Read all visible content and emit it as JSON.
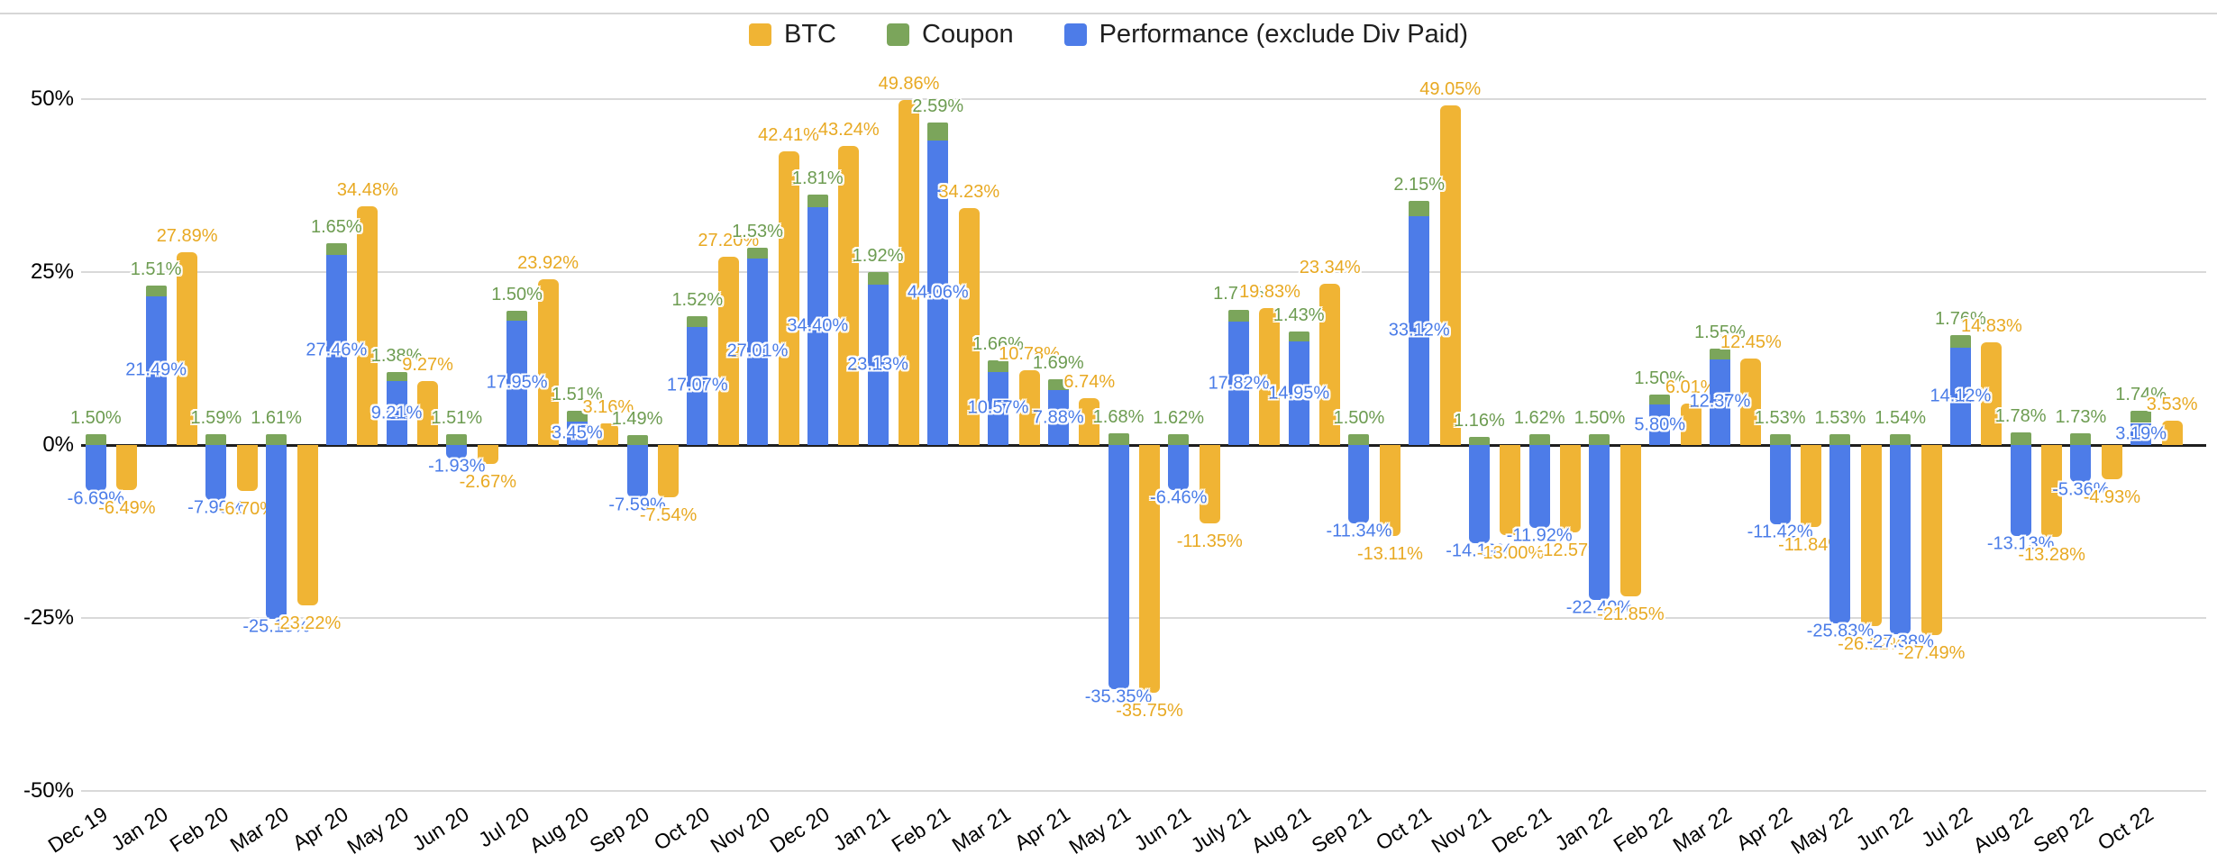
{
  "legend": [
    {
      "label": "BTC",
      "color": "#f0b434"
    },
    {
      "label": "Coupon",
      "color": "#7ba55b"
    },
    {
      "label": "Performance (exclude Div Paid)",
      "color": "#4d7ce8"
    }
  ],
  "y_axis": {
    "ticks": [
      "50%",
      "25%",
      "0%",
      "-25%",
      "-50%"
    ],
    "tick_values": [
      50,
      25,
      0,
      -25,
      -50
    ]
  },
  "chart_data": {
    "type": "bar",
    "title": "",
    "xlabel": "",
    "ylabel": "",
    "ylim": [
      -50,
      50
    ],
    "grid": true,
    "legend_position": "top",
    "stacking": "Coupon is stacked on top of Performance in one column; BTC is a separate column per category",
    "label_format": "2 decimals with % suffix",
    "categories": [
      "Dec 19",
      "Jan 20",
      "Feb 20",
      "Mar 20",
      "Apr 20",
      "May 20",
      "Jun 20",
      "Jul 20",
      "Aug 20",
      "Sep 20",
      "Oct 20",
      "Nov 20",
      "Dec 20",
      "Jan 21",
      "Feb 21",
      "Mar 21",
      "Apr 21",
      "May 21",
      "Jun 21",
      "July 21",
      "Aug 21",
      "Sep 21",
      "Oct 21",
      "Nov 21",
      "Dec 21",
      "Jan 22",
      "Feb 22",
      "Mar 22",
      "Apr 22",
      "May 22",
      "Jun 22",
      "Jul 22",
      "Aug 22",
      "Sep 22",
      "Oct 22"
    ],
    "series": [
      {
        "name": "BTC",
        "color": "#f0b434",
        "values": [
          -6.49,
          27.89,
          -6.7,
          -23.22,
          34.48,
          9.27,
          -2.67,
          23.92,
          3.16,
          -7.54,
          27.2,
          42.41,
          43.24,
          49.86,
          34.23,
          10.78,
          6.74,
          -35.75,
          -11.35,
          19.83,
          23.34,
          -13.11,
          49.05,
          -13.0,
          -12.57,
          -21.85,
          6.01,
          12.45,
          -11.84,
          -26.12,
          -27.49,
          14.83,
          -13.28,
          -4.93,
          3.53
        ]
      },
      {
        "name": "Coupon",
        "color": "#7ba55b",
        "values": [
          1.5,
          1.51,
          1.59,
          1.61,
          1.65,
          1.38,
          1.51,
          1.5,
          1.51,
          1.49,
          1.52,
          1.53,
          1.81,
          1.92,
          2.59,
          1.66,
          1.69,
          1.68,
          1.62,
          1.71,
          1.43,
          1.5,
          2.15,
          1.16,
          1.62,
          1.5,
          1.5,
          1.55,
          1.53,
          1.53,
          1.54,
          1.76,
          1.78,
          1.73,
          1.74
        ]
      },
      {
        "name": "Performance (exclude Div Paid)",
        "color": "#4d7ce8",
        "values": [
          -6.69,
          21.49,
          -7.9,
          -25.15,
          27.46,
          9.21,
          -1.93,
          17.95,
          3.45,
          -7.59,
          17.07,
          27.01,
          34.4,
          23.13,
          44.06,
          10.57,
          7.88,
          -35.35,
          -6.46,
          17.82,
          14.95,
          -11.34,
          33.12,
          -14.19,
          -11.92,
          -22.4,
          5.8,
          12.37,
          -11.42,
          -25.83,
          -27.38,
          14.12,
          -13.13,
          -5.36,
          3.19
        ]
      }
    ]
  }
}
